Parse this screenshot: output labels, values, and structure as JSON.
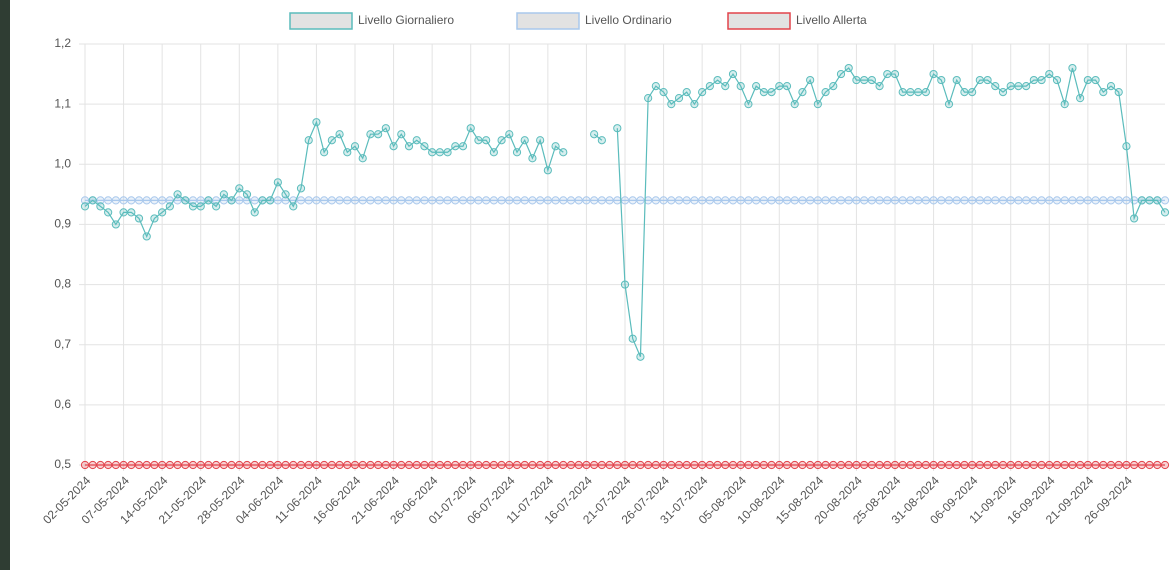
{
  "chart_data": {
    "type": "line",
    "categories": [
      "02-05-2024",
      null,
      null,
      null,
      null,
      "07-05-2024",
      null,
      null,
      null,
      null,
      "14-05-2024",
      null,
      null,
      null,
      null,
      "21-05-2024",
      null,
      null,
      null,
      null,
      "28-05-2024",
      null,
      null,
      null,
      null,
      "04-06-2024",
      null,
      null,
      null,
      null,
      "11-06-2024",
      null,
      null,
      null,
      null,
      "16-06-2024",
      null,
      null,
      null,
      null,
      "21-06-2024",
      null,
      null,
      null,
      null,
      "26-06-2024",
      null,
      null,
      null,
      null,
      "01-07-2024",
      null,
      null,
      null,
      null,
      "06-07-2024",
      null,
      null,
      null,
      null,
      "11-07-2024",
      null,
      null,
      null,
      null,
      "16-07-2024",
      null,
      null,
      null,
      null,
      "21-07-2024",
      null,
      null,
      null,
      null,
      "26-07-2024",
      null,
      null,
      null,
      null,
      "31-07-2024",
      null,
      null,
      null,
      null,
      "05-08-2024",
      null,
      null,
      null,
      null,
      "10-08-2024",
      null,
      null,
      null,
      null,
      "15-08-2024",
      null,
      null,
      null,
      null,
      "20-08-2024",
      null,
      null,
      null,
      null,
      "25-08-2024",
      null,
      null,
      null,
      null,
      "31-08-2024",
      null,
      null,
      null,
      null,
      "06-09-2024",
      null,
      null,
      null,
      null,
      "11-09-2024",
      null,
      null,
      null,
      null,
      "16-09-2024",
      null,
      null,
      null,
      null,
      "21-09-2024",
      null,
      null,
      null,
      null,
      "26-09-2024",
      null,
      null,
      null,
      null,
      null
    ],
    "series": [
      {
        "name": "Livello Giornaliero",
        "color": "#5bbcbc",
        "values": [
          0.93,
          0.94,
          0.93,
          0.92,
          0.9,
          0.92,
          0.92,
          0.91,
          0.88,
          0.91,
          0.92,
          0.93,
          0.95,
          0.94,
          0.93,
          0.93,
          0.94,
          0.93,
          0.95,
          0.94,
          0.96,
          0.95,
          0.92,
          0.94,
          0.94,
          0.97,
          0.95,
          0.93,
          0.96,
          1.04,
          1.07,
          1.02,
          1.04,
          1.05,
          1.02,
          1.03,
          1.01,
          1.05,
          1.05,
          1.06,
          1.03,
          1.05,
          1.03,
          1.04,
          1.03,
          1.02,
          1.02,
          1.02,
          1.03,
          1.03,
          1.06,
          1.04,
          1.04,
          1.02,
          1.04,
          1.05,
          1.02,
          1.04,
          1.01,
          1.04,
          0.99,
          1.03,
          1.02,
          null,
          null,
          null,
          1.05,
          1.04,
          null,
          1.06,
          0.8,
          0.71,
          0.68,
          1.11,
          1.13,
          1.12,
          1.1,
          1.11,
          1.12,
          1.1,
          1.12,
          1.13,
          1.14,
          1.13,
          1.15,
          1.13,
          1.1,
          1.13,
          1.12,
          1.12,
          1.13,
          1.13,
          1.1,
          1.12,
          1.14,
          1.1,
          1.12,
          1.13,
          1.15,
          1.16,
          1.14,
          1.14,
          1.14,
          1.13,
          1.15,
          1.15,
          1.12,
          1.12,
          1.12,
          1.12,
          1.15,
          1.14,
          1.1,
          1.14,
          1.12,
          1.12,
          1.14,
          1.14,
          1.13,
          1.12,
          1.13,
          1.13,
          1.13,
          1.14,
          1.14,
          1.15,
          1.14,
          1.1,
          1.16,
          1.11,
          1.14,
          1.14,
          1.12,
          1.13,
          1.12,
          1.03,
          0.91,
          0.94,
          0.94,
          0.94,
          0.92
        ]
      },
      {
        "name": "Livello Ordinario",
        "color": "#a9c8ec",
        "values": [
          0.94,
          0.94,
          0.94,
          0.94,
          0.94,
          0.94,
          0.94,
          0.94,
          0.94,
          0.94,
          0.94,
          0.94,
          0.94,
          0.94,
          0.94,
          0.94,
          0.94,
          0.94,
          0.94,
          0.94,
          0.94,
          0.94,
          0.94,
          0.94,
          0.94,
          0.94,
          0.94,
          0.94,
          0.94,
          0.94,
          0.94,
          0.94,
          0.94,
          0.94,
          0.94,
          0.94,
          0.94,
          0.94,
          0.94,
          0.94,
          0.94,
          0.94,
          0.94,
          0.94,
          0.94,
          0.94,
          0.94,
          0.94,
          0.94,
          0.94,
          0.94,
          0.94,
          0.94,
          0.94,
          0.94,
          0.94,
          0.94,
          0.94,
          0.94,
          0.94,
          0.94,
          0.94,
          0.94,
          0.94,
          0.94,
          0.94,
          0.94,
          0.94,
          0.94,
          0.94,
          0.94,
          0.94,
          0.94,
          0.94,
          0.94,
          0.94,
          0.94,
          0.94,
          0.94,
          0.94,
          0.94,
          0.94,
          0.94,
          0.94,
          0.94,
          0.94,
          0.94,
          0.94,
          0.94,
          0.94,
          0.94,
          0.94,
          0.94,
          0.94,
          0.94,
          0.94,
          0.94,
          0.94,
          0.94,
          0.94,
          0.94,
          0.94,
          0.94,
          0.94,
          0.94,
          0.94,
          0.94,
          0.94,
          0.94,
          0.94,
          0.94,
          0.94,
          0.94,
          0.94,
          0.94,
          0.94,
          0.94,
          0.94,
          0.94,
          0.94,
          0.94,
          0.94,
          0.94,
          0.94,
          0.94,
          0.94,
          0.94,
          0.94,
          0.94,
          0.94,
          0.94,
          0.94,
          0.94,
          0.94,
          0.94,
          0.94,
          0.94,
          0.94,
          0.94,
          0.94,
          0.94
        ]
      },
      {
        "name": "Livello Allerta",
        "color": "#e2434b",
        "values": [
          0.5,
          0.5,
          0.5,
          0.5,
          0.5,
          0.5,
          0.5,
          0.5,
          0.5,
          0.5,
          0.5,
          0.5,
          0.5,
          0.5,
          0.5,
          0.5,
          0.5,
          0.5,
          0.5,
          0.5,
          0.5,
          0.5,
          0.5,
          0.5,
          0.5,
          0.5,
          0.5,
          0.5,
          0.5,
          0.5,
          0.5,
          0.5,
          0.5,
          0.5,
          0.5,
          0.5,
          0.5,
          0.5,
          0.5,
          0.5,
          0.5,
          0.5,
          0.5,
          0.5,
          0.5,
          0.5,
          0.5,
          0.5,
          0.5,
          0.5,
          0.5,
          0.5,
          0.5,
          0.5,
          0.5,
          0.5,
          0.5,
          0.5,
          0.5,
          0.5,
          0.5,
          0.5,
          0.5,
          0.5,
          0.5,
          0.5,
          0.5,
          0.5,
          0.5,
          0.5,
          0.5,
          0.5,
          0.5,
          0.5,
          0.5,
          0.5,
          0.5,
          0.5,
          0.5,
          0.5,
          0.5,
          0.5,
          0.5,
          0.5,
          0.5,
          0.5,
          0.5,
          0.5,
          0.5,
          0.5,
          0.5,
          0.5,
          0.5,
          0.5,
          0.5,
          0.5,
          0.5,
          0.5,
          0.5,
          0.5,
          0.5,
          0.5,
          0.5,
          0.5,
          0.5,
          0.5,
          0.5,
          0.5,
          0.5,
          0.5,
          0.5,
          0.5,
          0.5,
          0.5,
          0.5,
          0.5,
          0.5,
          0.5,
          0.5,
          0.5,
          0.5,
          0.5,
          0.5,
          0.5,
          0.5,
          0.5,
          0.5,
          0.5,
          0.5,
          0.5,
          0.5,
          0.5,
          0.5,
          0.5,
          0.5,
          0.5,
          0.5,
          0.5,
          0.5,
          0.5,
          0.5
        ]
      }
    ],
    "ylim": [
      0.5,
      1.2
    ],
    "yticks": [
      {
        "value": 0.5,
        "label": "0,5"
      },
      {
        "value": 0.6,
        "label": "0,6"
      },
      {
        "value": 0.7,
        "label": "0,7"
      },
      {
        "value": 0.8,
        "label": "0,8"
      },
      {
        "value": 0.9,
        "label": "0,9"
      },
      {
        "value": 1.0,
        "label": "1,0"
      },
      {
        "value": 1.1,
        "label": "1,1"
      },
      {
        "value": 1.2,
        "label": "1,2"
      }
    ],
    "grid": true,
    "legend": "top"
  }
}
